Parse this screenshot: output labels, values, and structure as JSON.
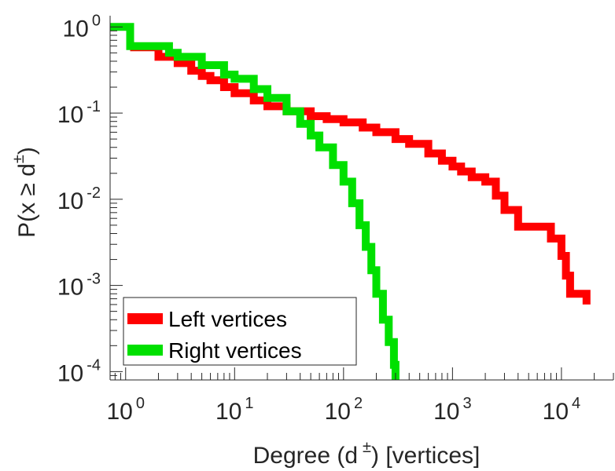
{
  "chart_data": {
    "type": "line",
    "xscale": "log",
    "yscale": "log",
    "xlim": [
      0.72,
      30000
    ],
    "ylim": [
      8e-05,
      1.35
    ],
    "grid": false,
    "legend_position": "bottom-left",
    "xlabel_parts": [
      "Degree (d",
      "±",
      ") [vertices]"
    ],
    "ylabel_parts": [
      "P(x ≥ d",
      "±",
      ")"
    ],
    "x_ticks": [
      {
        "value": 1,
        "base": "10",
        "exp": "0"
      },
      {
        "value": 10,
        "base": "10",
        "exp": "1"
      },
      {
        "value": 100,
        "base": "10",
        "exp": "2"
      },
      {
        "value": 1000,
        "base": "10",
        "exp": "3"
      },
      {
        "value": 10000,
        "base": "10",
        "exp": "4"
      }
    ],
    "y_ticks": [
      {
        "value": 1,
        "base": "10",
        "exp": "0"
      },
      {
        "value": 0.1,
        "base": "10",
        "exp": "-1"
      },
      {
        "value": 0.01,
        "base": "10",
        "exp": "-2"
      },
      {
        "value": 0.001,
        "base": "10",
        "exp": "-3"
      },
      {
        "value": 0.0001,
        "base": "10",
        "exp": "-4"
      }
    ],
    "series": [
      {
        "name": "Left vertices",
        "color": "#ff0000",
        "points": [
          [
            1.1,
            0.58
          ],
          [
            2.0,
            0.58
          ],
          [
            2.0,
            0.45
          ],
          [
            3,
            0.38
          ],
          [
            4,
            0.31
          ],
          [
            5,
            0.27
          ],
          [
            6,
            0.24
          ],
          [
            8,
            0.2
          ],
          [
            10,
            0.17
          ],
          [
            15,
            0.14
          ],
          [
            20,
            0.12
          ],
          [
            30,
            0.105
          ],
          [
            50,
            0.092
          ],
          [
            70,
            0.085
          ],
          [
            100,
            0.078
          ],
          [
            150,
            0.068
          ],
          [
            200,
            0.06
          ],
          [
            300,
            0.05
          ],
          [
            400,
            0.044
          ],
          [
            600,
            0.034
          ],
          [
            800,
            0.028
          ],
          [
            1000,
            0.024
          ],
          [
            1200,
            0.021
          ],
          [
            1500,
            0.018
          ],
          [
            2000,
            0.016
          ],
          [
            2500,
            0.011
          ],
          [
            3000,
            0.0075
          ],
          [
            3500,
            0.0075
          ],
          [
            4000,
            0.0048
          ],
          [
            6000,
            0.0048
          ],
          [
            8000,
            0.0035
          ],
          [
            10000,
            0.0022
          ],
          [
            11000,
            0.0013
          ],
          [
            12000,
            0.0008
          ],
          [
            17000,
            0.0008
          ],
          [
            17000,
            0.0006
          ]
        ]
      },
      {
        "name": "Right vertices",
        "color": "#00e000",
        "points": [
          [
            0.72,
            1.0
          ],
          [
            1.1,
            1.0
          ],
          [
            1.1,
            0.6
          ],
          [
            2.0,
            0.6
          ],
          [
            2.5,
            0.5
          ],
          [
            3,
            0.45
          ],
          [
            5,
            0.36
          ],
          [
            8,
            0.28
          ],
          [
            10,
            0.25
          ],
          [
            15,
            0.19
          ],
          [
            20,
            0.15
          ],
          [
            30,
            0.105
          ],
          [
            40,
            0.075
          ],
          [
            50,
            0.055
          ],
          [
            60,
            0.04
          ],
          [
            80,
            0.025
          ],
          [
            100,
            0.016
          ],
          [
            120,
            0.009
          ],
          [
            140,
            0.005
          ],
          [
            160,
            0.0028
          ],
          [
            180,
            0.0015
          ],
          [
            200,
            0.0008
          ],
          [
            230,
            0.0004
          ],
          [
            260,
            0.00022
          ],
          [
            290,
            0.00012
          ],
          [
            300,
            8e-05
          ]
        ]
      }
    ]
  }
}
